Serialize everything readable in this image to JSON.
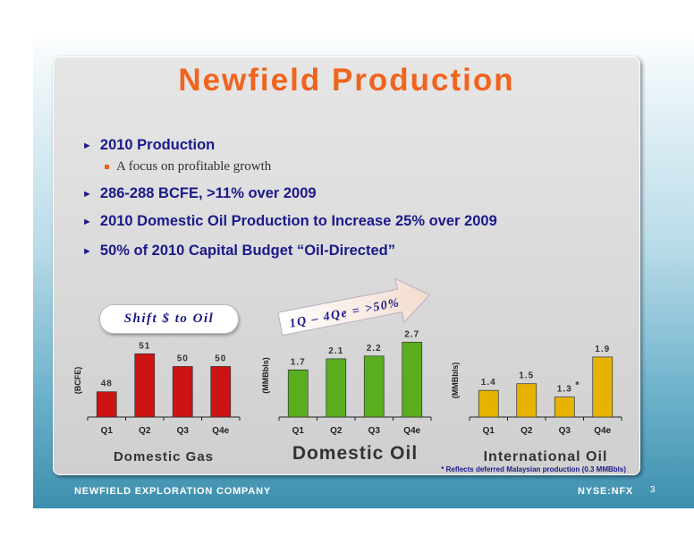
{
  "title": "Newfield Production",
  "bullets": [
    {
      "text": "2010 Production",
      "sub": "A focus on profitable growth"
    },
    {
      "text": "286-288 BCFE, >11% over 2009"
    },
    {
      "text": "2010 Domestic Oil Production to Increase 25% over 2009"
    },
    {
      "text": "50% of 2010 Capital Budget “Oil-Directed”"
    }
  ],
  "callouts": {
    "shift": "Shift $ to Oil",
    "arrow": "1Q – 4Qe = >50%"
  },
  "footnote": "* Reflects deferred Malaysian production (0.3 MMBbls)",
  "footer": {
    "company": "NEWFIELD EXPLORATION COMPANY",
    "ticker": "NYSE:NFX",
    "page": "3"
  },
  "colors": {
    "title": "#f0641e",
    "bullet_text": "#1a1a8c",
    "gas_bar": "#cc1414",
    "oil_bar": "#5aae1e",
    "intl_bar": "#e6b400"
  },
  "chart_data": [
    {
      "type": "bar",
      "title": "Domestic Gas",
      "ylabel": "(BCFE)",
      "categories": [
        "Q1",
        "Q2",
        "Q3",
        "Q4e"
      ],
      "values": [
        48,
        51,
        50,
        50
      ],
      "labels": [
        "48",
        "51",
        "50",
        "50"
      ],
      "ylim": [
        46,
        51.8
      ]
    },
    {
      "type": "bar",
      "title": "Domestic Oil",
      "ylabel": "(MMBbls)",
      "categories": [
        "Q1",
        "Q2",
        "Q3",
        "Q4e"
      ],
      "values": [
        1.7,
        2.1,
        2.2,
        2.7
      ],
      "labels": [
        "1.7",
        "2.1",
        "2.2",
        "2.7"
      ],
      "ylim": [
        0,
        3.0
      ]
    },
    {
      "type": "bar",
      "title": "International Oil",
      "ylabel": "(MMBbls)",
      "categories": [
        "Q1",
        "Q2",
        "Q3",
        "Q4e"
      ],
      "values": [
        1.4,
        1.5,
        1.3,
        1.9
      ],
      "labels": [
        "1.4",
        "1.5",
        "1.3",
        "1.9"
      ],
      "ylim": [
        1.0,
        2.1
      ],
      "annotations": [
        {
          "category": "Q3",
          "text": "*"
        }
      ]
    }
  ]
}
